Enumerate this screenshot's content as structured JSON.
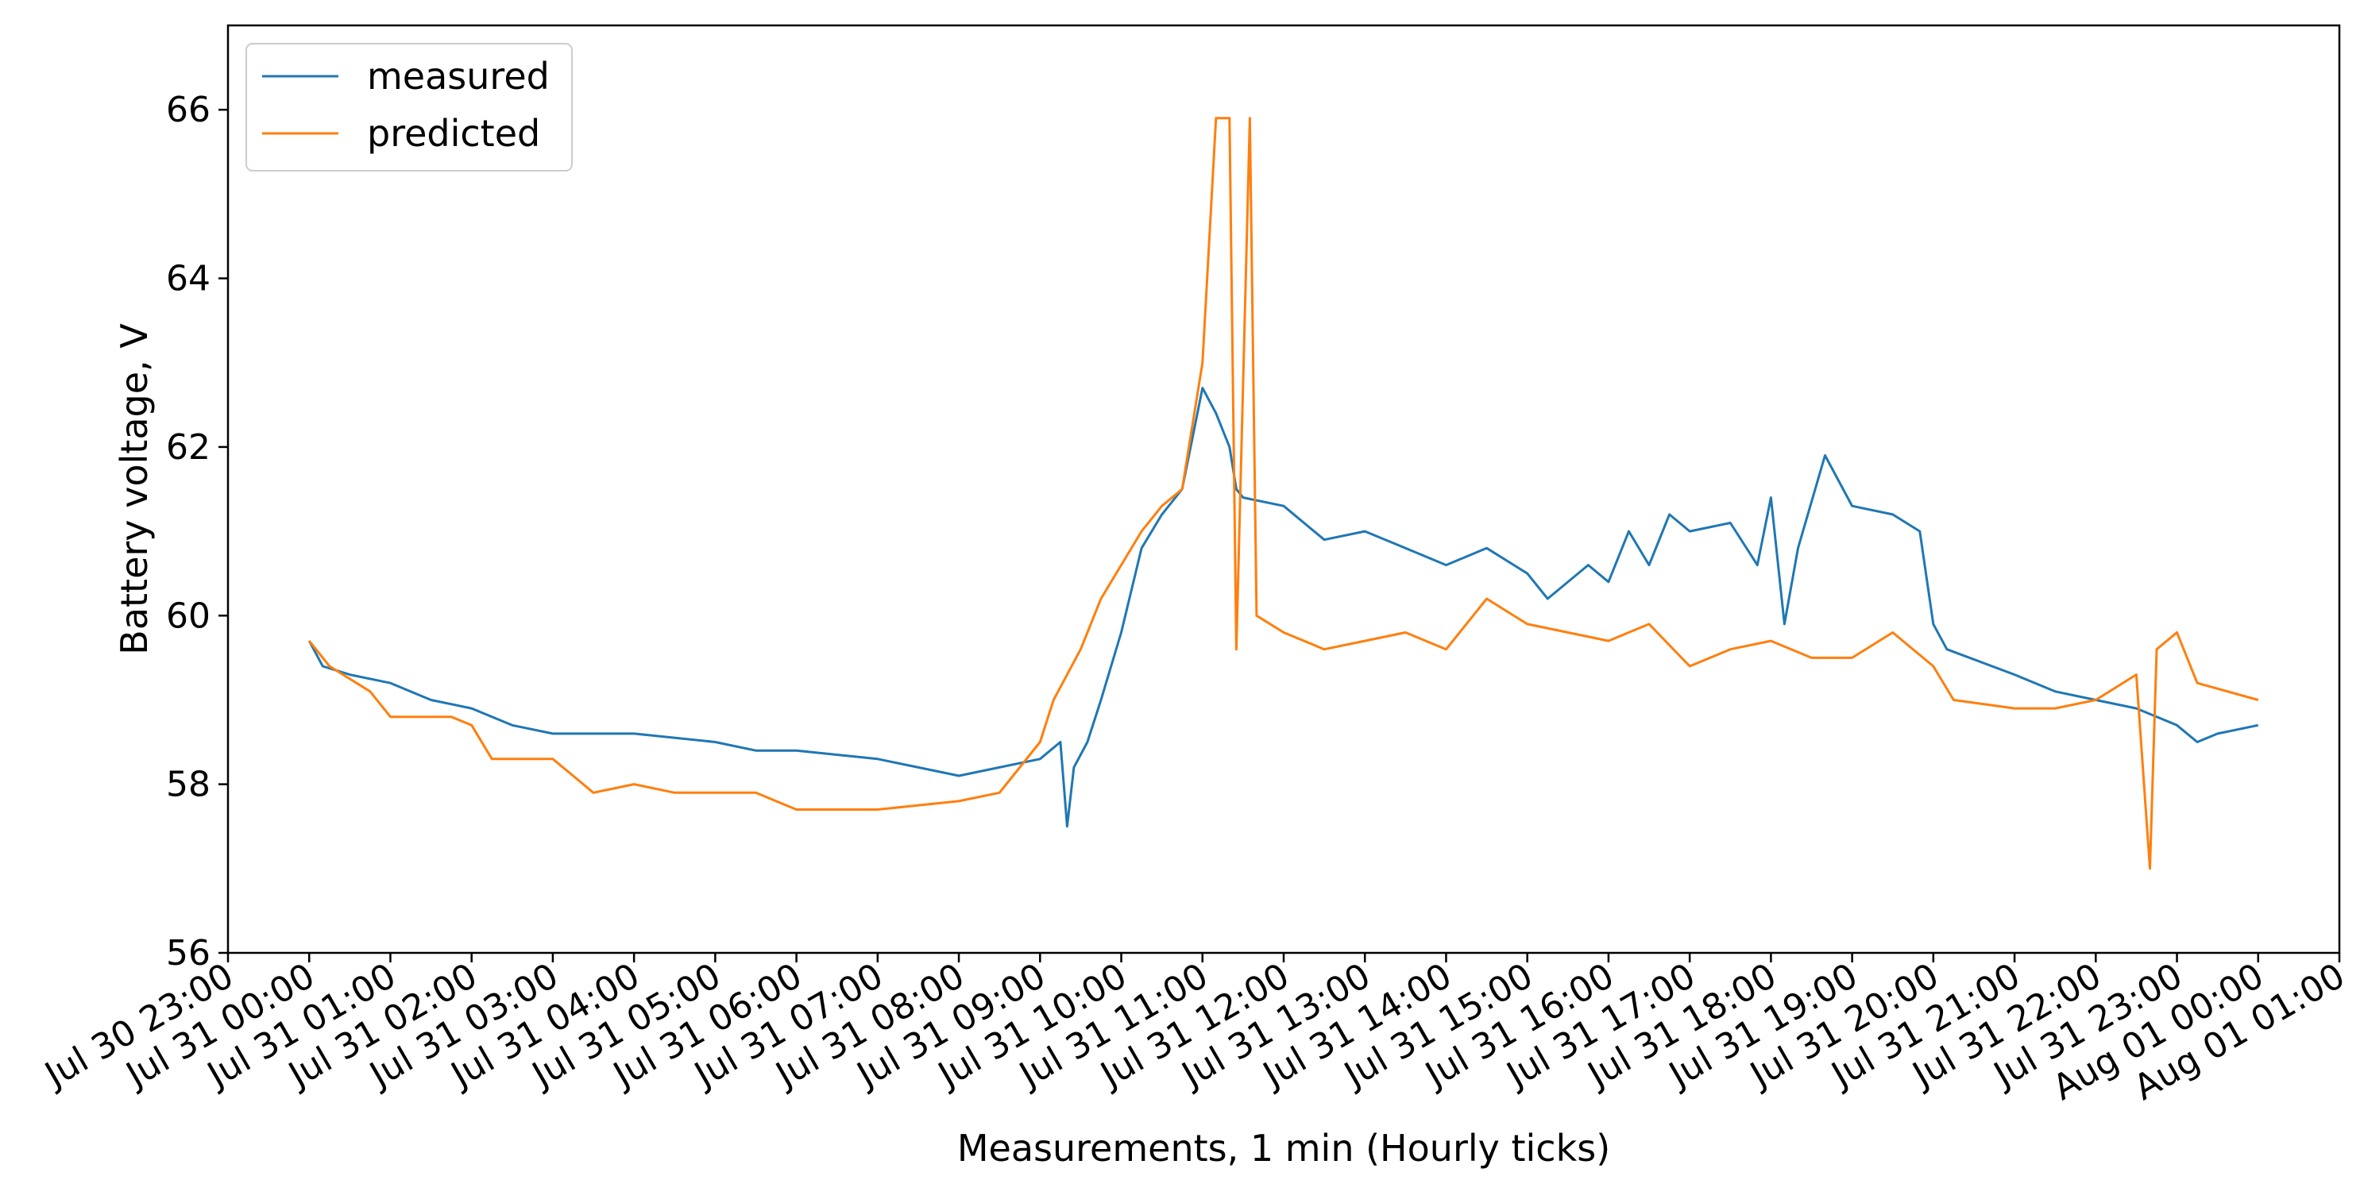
{
  "colors": {
    "measured": "#1f77b4",
    "predicted": "#ff7f0e",
    "axis": "#000000",
    "legend_border": "#cccccc"
  },
  "chart_data": {
    "type": "line",
    "title": "",
    "xlabel": "Measurements, 1 min (Hourly ticks)",
    "ylabel": "Battery voltage, V",
    "ylim": [
      56,
      67
    ],
    "xlim": [
      "2023-07-30 23:00",
      "2023-08-01 01:00"
    ],
    "yticks": [
      56,
      58,
      60,
      62,
      64,
      66
    ],
    "ytick_labels": [
      "56",
      "58",
      "60",
      "62",
      "64",
      "66"
    ],
    "xtick_labels": [
      "Jul 30 23:00",
      "Jul 31 00:00",
      "Jul 31 01:00",
      "Jul 31 02:00",
      "Jul 31 03:00",
      "Jul 31 04:00",
      "Jul 31 05:00",
      "Jul 31 06:00",
      "Jul 31 07:00",
      "Jul 31 08:00",
      "Jul 31 09:00",
      "Jul 31 10:00",
      "Jul 31 11:00",
      "Jul 31 12:00",
      "Jul 31 13:00",
      "Jul 31 14:00",
      "Jul 31 15:00",
      "Jul 31 16:00",
      "Jul 31 17:00",
      "Jul 31 18:00",
      "Jul 31 19:00",
      "Jul 31 20:00",
      "Jul 31 21:00",
      "Jul 31 22:00",
      "Jul 31 23:00",
      "Aug 01 00:00",
      "Aug 01 01:00"
    ],
    "grid": false,
    "legend_position": "upper left",
    "series": [
      {
        "name": "measured",
        "points": [
          [
            "Jul 31 00:00",
            59.7
          ],
          [
            "Jul 31 00:10",
            59.4
          ],
          [
            "Jul 31 00:30",
            59.3
          ],
          [
            "Jul 31 01:00",
            59.2
          ],
          [
            "Jul 31 01:30",
            59.0
          ],
          [
            "Jul 31 02:00",
            58.9
          ],
          [
            "Jul 31 02:30",
            58.7
          ],
          [
            "Jul 31 03:00",
            58.6
          ],
          [
            "Jul 31 04:00",
            58.6
          ],
          [
            "Jul 31 05:00",
            58.5
          ],
          [
            "Jul 31 05:30",
            58.4
          ],
          [
            "Jul 31 06:00",
            58.4
          ],
          [
            "Jul 31 07:00",
            58.3
          ],
          [
            "Jul 31 08:00",
            58.1
          ],
          [
            "Jul 31 08:30",
            58.2
          ],
          [
            "Jul 31 09:00",
            58.3
          ],
          [
            "Jul 31 09:15",
            58.5
          ],
          [
            "Jul 31 09:20",
            57.5
          ],
          [
            "Jul 31 09:25",
            58.2
          ],
          [
            "Jul 31 09:35",
            58.5
          ],
          [
            "Jul 31 09:45",
            59.0
          ],
          [
            "Jul 31 10:00",
            59.8
          ],
          [
            "Jul 31 10:15",
            60.8
          ],
          [
            "Jul 31 10:30",
            61.2
          ],
          [
            "Jul 31 10:45",
            61.5
          ],
          [
            "Jul 31 11:00",
            62.7
          ],
          [
            "Jul 31 11:10",
            62.4
          ],
          [
            "Jul 31 11:20",
            62.0
          ],
          [
            "Jul 31 11:25",
            61.5
          ],
          [
            "Jul 31 11:30",
            61.4
          ],
          [
            "Jul 31 12:00",
            61.3
          ],
          [
            "Jul 31 12:30",
            60.9
          ],
          [
            "Jul 31 13:00",
            61.0
          ],
          [
            "Jul 31 13:30",
            60.8
          ],
          [
            "Jul 31 14:00",
            60.6
          ],
          [
            "Jul 31 14:30",
            60.8
          ],
          [
            "Jul 31 15:00",
            60.5
          ],
          [
            "Jul 31 15:15",
            60.2
          ],
          [
            "Jul 31 15:45",
            60.6
          ],
          [
            "Jul 31 16:00",
            60.4
          ],
          [
            "Jul 31 16:15",
            61.0
          ],
          [
            "Jul 31 16:30",
            60.6
          ],
          [
            "Jul 31 16:45",
            61.2
          ],
          [
            "Jul 31 17:00",
            61.0
          ],
          [
            "Jul 31 17:30",
            61.1
          ],
          [
            "Jul 31 17:50",
            60.6
          ],
          [
            "Jul 31 18:00",
            61.4
          ],
          [
            "Jul 31 18:10",
            59.9
          ],
          [
            "Jul 31 18:20",
            60.8
          ],
          [
            "Jul 31 18:40",
            61.9
          ],
          [
            "Jul 31 19:00",
            61.3
          ],
          [
            "Jul 31 19:30",
            61.2
          ],
          [
            "Jul 31 19:50",
            61.0
          ],
          [
            "Jul 31 20:00",
            59.9
          ],
          [
            "Jul 31 20:10",
            59.6
          ],
          [
            "Jul 31 21:00",
            59.3
          ],
          [
            "Jul 31 21:30",
            59.1
          ],
          [
            "Jul 31 22:00",
            59.0
          ],
          [
            "Jul 31 22:30",
            58.9
          ],
          [
            "Jul 31 23:00",
            58.7
          ],
          [
            "Jul 31 23:15",
            58.5
          ],
          [
            "Jul 31 23:30",
            58.6
          ],
          [
            "Aug 01 00:00",
            58.7
          ]
        ]
      },
      {
        "name": "predicted",
        "points": [
          [
            "Jul 31 00:00",
            59.7
          ],
          [
            "Jul 31 00:15",
            59.4
          ],
          [
            "Jul 31 00:45",
            59.1
          ],
          [
            "Jul 31 01:00",
            58.8
          ],
          [
            "Jul 31 01:45",
            58.8
          ],
          [
            "Jul 31 02:00",
            58.7
          ],
          [
            "Jul 31 02:15",
            58.3
          ],
          [
            "Jul 31 02:45",
            58.3
          ],
          [
            "Jul 31 03:00",
            58.3
          ],
          [
            "Jul 31 03:15",
            58.1
          ],
          [
            "Jul 31 03:30",
            57.9
          ],
          [
            "Jul 31 04:00",
            58.0
          ],
          [
            "Jul 31 04:30",
            57.9
          ],
          [
            "Jul 31 05:00",
            57.9
          ],
          [
            "Jul 31 05:30",
            57.9
          ],
          [
            "Jul 31 06:00",
            57.7
          ],
          [
            "Jul 31 07:00",
            57.7
          ],
          [
            "Jul 31 08:00",
            57.8
          ],
          [
            "Jul 31 08:30",
            57.9
          ],
          [
            "Jul 31 09:00",
            58.5
          ],
          [
            "Jul 31 09:10",
            59.0
          ],
          [
            "Jul 31 09:20",
            59.3
          ],
          [
            "Jul 31 09:30",
            59.6
          ],
          [
            "Jul 31 09:45",
            60.2
          ],
          [
            "Jul 31 10:00",
            60.6
          ],
          [
            "Jul 31 10:15",
            61.0
          ],
          [
            "Jul 31 10:30",
            61.3
          ],
          [
            "Jul 31 10:45",
            61.5
          ],
          [
            "Jul 31 11:00",
            63.0
          ],
          [
            "Jul 31 11:10",
            65.9
          ],
          [
            "Jul 31 11:20",
            65.9
          ],
          [
            "Jul 31 11:25",
            59.6
          ],
          [
            "Jul 31 11:35",
            65.9
          ],
          [
            "Jul 31 11:40",
            60.0
          ],
          [
            "Jul 31 12:00",
            59.8
          ],
          [
            "Jul 31 12:30",
            59.6
          ],
          [
            "Jul 31 13:00",
            59.7
          ],
          [
            "Jul 31 13:30",
            59.8
          ],
          [
            "Jul 31 14:00",
            59.6
          ],
          [
            "Jul 31 14:30",
            60.2
          ],
          [
            "Jul 31 15:00",
            59.9
          ],
          [
            "Jul 31 15:30",
            59.8
          ],
          [
            "Jul 31 16:00",
            59.7
          ],
          [
            "Jul 31 16:30",
            59.9
          ],
          [
            "Jul 31 17:00",
            59.4
          ],
          [
            "Jul 31 17:30",
            59.6
          ],
          [
            "Jul 31 18:00",
            59.7
          ],
          [
            "Jul 31 18:30",
            59.5
          ],
          [
            "Jul 31 19:00",
            59.5
          ],
          [
            "Jul 31 19:30",
            59.8
          ],
          [
            "Jul 31 20:00",
            59.4
          ],
          [
            "Jul 31 20:15",
            59.0
          ],
          [
            "Jul 31 21:00",
            58.9
          ],
          [
            "Jul 31 21:30",
            58.9
          ],
          [
            "Jul 31 22:00",
            59.0
          ],
          [
            "Jul 31 22:30",
            59.3
          ],
          [
            "Jul 31 22:40",
            57.0
          ],
          [
            "Jul 31 22:45",
            59.6
          ],
          [
            "Jul 31 23:00",
            59.8
          ],
          [
            "Jul 31 23:15",
            59.2
          ],
          [
            "Aug 01 00:00",
            59.0
          ]
        ]
      }
    ]
  }
}
